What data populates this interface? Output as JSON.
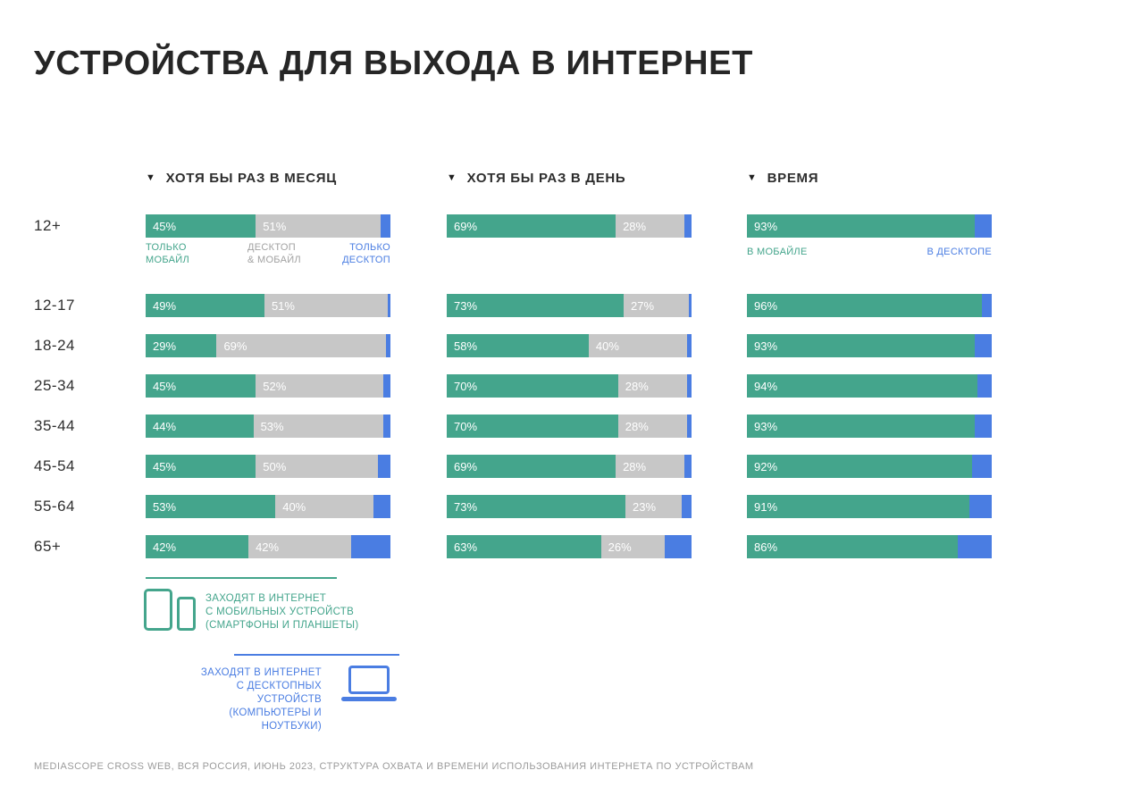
{
  "title": "УСТРОЙСТВА ДЛЯ ВЫХОДА В ИНТЕРНЕТ",
  "footer": "MEDIASCOPE CROSS WEB, ВСЯ РОССИЯ, ИЮНЬ 2023, СТРУКТУРА ОХВАТА И ВРЕМЕНИ ИСПОЛЬЗОВАНИЯ ИНТЕРНЕТА ПО УСТРОЙСТВАМ",
  "colors": {
    "mobile": "#44A58C",
    "both": "#C7C7C7",
    "desktop": "#4A7DE2"
  },
  "annotations": {
    "month_mobile": "ТОЛЬКО\nМОБАЙЛ",
    "month_both": "ДЕСКТОП\n& МОБАЙЛ",
    "month_desktop": "ТОЛЬКО\nДЕСКТОП",
    "time_mobile": "В МОБАЙЛЕ",
    "time_desktop": "В ДЕСКТОПЕ"
  },
  "legend": {
    "mobile": "ЗАХОДЯТ В ИНТЕРНЕТ\nС МОБИЛЬНЫХ УСТРОЙСТВ\n(СМАРТФОНЫ И ПЛАНШЕТЫ)",
    "desktop": "ЗАХОДЯТ В ИНТЕРНЕТ\nС ДЕСКТОПНЫХ УСТРОЙСТВ\n(КОМПЬЮТЕРЫ И НОУТБУКИ)"
  },
  "chart_data": {
    "type": "bar",
    "subtype": "horizontal-stacked",
    "unit": "%",
    "categories": [
      "12+",
      "12-17",
      "18-24",
      "25-34",
      "35-44",
      "45-54",
      "55-64",
      "65+"
    ],
    "panels": [
      {
        "id": "month",
        "title": "ХОТЯ БЫ РАЗ В МЕСЯЦ",
        "series": [
          {
            "key": "mobile",
            "name": "ТОЛЬКО МОБАЙЛ",
            "show_labels": true,
            "values": [
              45,
              49,
              29,
              45,
              44,
              45,
              53,
              42
            ]
          },
          {
            "key": "both",
            "name": "ДЕСКТОП & МОБАЙЛ",
            "show_labels": true,
            "values": [
              51,
              51,
              69,
              52,
              53,
              50,
              40,
              42
            ]
          },
          {
            "key": "desktop",
            "name": "ТОЛЬКО ДЕСКТОП",
            "show_labels": false,
            "values": [
              4,
              1,
              2,
              3,
              3,
              5,
              7,
              16
            ]
          }
        ]
      },
      {
        "id": "day",
        "title": "ХОТЯ БЫ РАЗ В ДЕНЬ",
        "series": [
          {
            "key": "mobile",
            "name": "ТОЛЬКО МОБАЙЛ",
            "show_labels": true,
            "values": [
              69,
              73,
              58,
              70,
              70,
              69,
              73,
              63
            ]
          },
          {
            "key": "both",
            "name": "ДЕСКТОП & МОБАЙЛ",
            "show_labels": true,
            "values": [
              28,
              27,
              40,
              28,
              28,
              28,
              23,
              26
            ]
          },
          {
            "key": "desktop",
            "name": "ТОЛЬКО ДЕСКТОП",
            "show_labels": false,
            "values": [
              3,
              1,
              2,
              2,
              2,
              3,
              4,
              11
            ]
          }
        ]
      },
      {
        "id": "time",
        "title": "ВРЕМЯ",
        "series": [
          {
            "key": "mobile",
            "name": "В МОБАЙЛЕ",
            "show_labels": true,
            "values": [
              93,
              96,
              93,
              94,
              93,
              92,
              91,
              86
            ]
          },
          {
            "key": "desktop",
            "name": "В ДЕСКТОПЕ",
            "show_labels": false,
            "values": [
              7,
              4,
              7,
              6,
              7,
              8,
              9,
              14
            ]
          }
        ]
      }
    ]
  }
}
